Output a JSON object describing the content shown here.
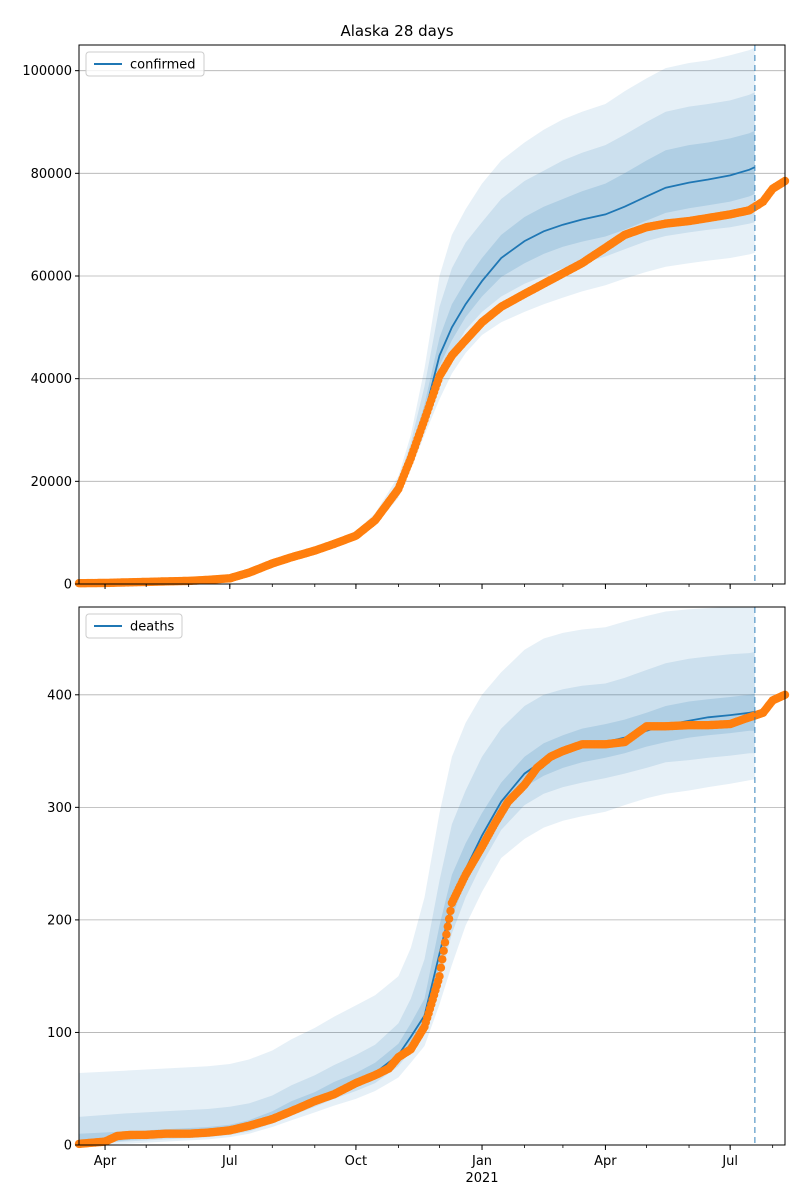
{
  "title": "Alaska 28 days",
  "colors": {
    "line": "#1f77b4",
    "band": "#1f77b4",
    "observed": "#ff7f0e",
    "grid": "#b0b0b0",
    "forecast_marker": "#1f77b4"
  },
  "x_axis": {
    "start": "2020-03-13",
    "end": "2021-08-10",
    "tick_labels": [
      {
        "date": "2020-04-01",
        "label": "Apr"
      },
      {
        "date": "2020-07-01",
        "label": "Jul"
      },
      {
        "date": "2020-10-01",
        "label": "Oct"
      },
      {
        "date": "2021-01-01",
        "label": "Jan"
      },
      {
        "date": "2021-04-01",
        "label": "Apr"
      },
      {
        "date": "2021-07-01",
        "label": "Jul"
      }
    ],
    "year_label": "2021",
    "year_label_date": "2021-01-01",
    "forecast_start": "2021-07-19"
  },
  "chart_data": [
    {
      "type": "line",
      "legend": "confirmed",
      "legend_placement": "upper-left",
      "grid": "horizontal",
      "ylim": [
        0,
        105000
      ],
      "yticks": [
        0,
        20000,
        40000,
        60000,
        80000,
        100000
      ],
      "ytick_labels": [
        "0",
        "20000",
        "40000",
        "60000",
        "80000",
        "100000"
      ],
      "dates": [
        "2020-03-13",
        "2020-04-15",
        "2020-05-15",
        "2020-06-15",
        "2020-07-01",
        "2020-07-15",
        "2020-08-01",
        "2020-08-15",
        "2020-09-01",
        "2020-09-15",
        "2020-10-01",
        "2020-10-15",
        "2020-11-01",
        "2020-11-10",
        "2020-11-20",
        "2020-12-01",
        "2020-12-10",
        "2020-12-20",
        "2021-01-01",
        "2021-01-15",
        "2021-02-01",
        "2021-02-15",
        "2021-03-01",
        "2021-03-15",
        "2021-04-01",
        "2021-04-15",
        "2021-05-01",
        "2021-05-15",
        "2021-06-01",
        "2021-06-15",
        "2021-07-01",
        "2021-07-15",
        "2021-07-19"
      ],
      "median": [
        200,
        300,
        500,
        700,
        1100,
        2200,
        4000,
        5300,
        6500,
        7800,
        9400,
        12500,
        18500,
        24800,
        33000,
        44500,
        50000,
        54500,
        59000,
        63500,
        66800,
        68700,
        70000,
        71000,
        72000,
        73500,
        75500,
        77200,
        78200,
        78800,
        79600,
        80700,
        81200
      ],
      "bands": [
        {
          "lower": [
            150,
            250,
            400,
            600,
            1000,
            2000,
            3700,
            4800,
            6000,
            7200,
            8700,
            11400,
            16800,
            22300,
            29000,
            36000,
            41000,
            45000,
            48500,
            51000,
            53000,
            54500,
            55800,
            57000,
            58200,
            59500,
            60800,
            61800,
            62500,
            63000,
            63500,
            64200,
            64500
          ],
          "upper": [
            250,
            350,
            600,
            800,
            1200,
            2400,
            4300,
            5800,
            7100,
            8400,
            10200,
            13800,
            21000,
            29000,
            42000,
            60000,
            68000,
            73000,
            78000,
            82500,
            86000,
            88500,
            90500,
            92000,
            93500,
            96000,
            98500,
            100500,
            101500,
            102000,
            103000,
            104000,
            104500
          ]
        },
        {
          "lower": [
            170,
            270,
            430,
            640,
            1040,
            2070,
            3800,
            5000,
            6200,
            7400,
            9000,
            11800,
            17500,
            23300,
            31000,
            40000,
            45000,
            49500,
            53000,
            56000,
            58500,
            60000,
            61500,
            62500,
            63800,
            65200,
            66800,
            67800,
            68500,
            69000,
            69500,
            70200,
            70500
          ],
          "upper": [
            230,
            330,
            570,
            760,
            1160,
            2330,
            4200,
            5600,
            6850,
            8200,
            9900,
            13300,
            20000,
            27500,
            38500,
            54000,
            61500,
            66500,
            70500,
            75000,
            78500,
            80500,
            82500,
            84000,
            85500,
            87500,
            90000,
            92000,
            93000,
            93500,
            94200,
            95300,
            95800
          ]
        },
        {
          "lower": [
            185,
            285,
            460,
            670,
            1070,
            2130,
            3900,
            5150,
            6350,
            7600,
            9200,
            12100,
            18000,
            24000,
            32000,
            42500,
            47500,
            52000,
            56000,
            59800,
            62500,
            64300,
            65700,
            66700,
            67700,
            69000,
            70800,
            72300,
            73200,
            73800,
            74500,
            75500,
            76000
          ],
          "upper": [
            215,
            315,
            540,
            730,
            1130,
            2270,
            4100,
            5450,
            6650,
            8000,
            9600,
            12900,
            19200,
            26000,
            35000,
            48000,
            54500,
            59000,
            63500,
            68000,
            71500,
            73500,
            75000,
            76500,
            78000,
            80000,
            82500,
            84500,
            85500,
            86000,
            86800,
            87800,
            88300
          ]
        }
      ],
      "observed": {
        "dates": [
          "2020-03-13",
          "2020-04-01",
          "2020-04-15",
          "2020-05-01",
          "2020-05-15",
          "2020-06-01",
          "2020-06-15",
          "2020-07-01",
          "2020-07-15",
          "2020-08-01",
          "2020-08-15",
          "2020-09-01",
          "2020-09-15",
          "2020-10-01",
          "2020-10-15",
          "2020-11-01",
          "2020-11-10",
          "2020-11-20",
          "2020-12-01",
          "2020-12-10",
          "2020-12-20",
          "2021-01-01",
          "2021-01-15",
          "2021-02-01",
          "2021-02-15",
          "2021-03-01",
          "2021-03-15",
          "2021-04-01",
          "2021-04-15",
          "2021-05-01",
          "2021-05-15",
          "2021-06-01",
          "2021-06-15",
          "2021-07-01",
          "2021-07-15",
          "2021-07-25",
          "2021-08-01",
          "2021-08-10"
        ],
        "values": [
          150,
          200,
          300,
          400,
          500,
          600,
          800,
          1100,
          2200,
          4000,
          5200,
          6500,
          7800,
          9400,
          12400,
          18500,
          24500,
          32000,
          40500,
          44500,
          47500,
          51000,
          54000,
          56500,
          58500,
          60500,
          62500,
          65500,
          68000,
          69500,
          70200,
          70700,
          71300,
          72000,
          72800,
          74500,
          77000,
          78500
        ]
      }
    },
    {
      "type": "line",
      "legend": "deaths",
      "legend_placement": "upper-left",
      "grid": "horizontal",
      "ylim": [
        0,
        478
      ],
      "yticks": [
        0,
        100,
        200,
        300,
        400
      ],
      "ytick_labels": [
        "0",
        "100",
        "200",
        "300",
        "400"
      ],
      "dates": [
        "2020-03-13",
        "2020-04-15",
        "2020-05-15",
        "2020-06-15",
        "2020-07-01",
        "2020-07-15",
        "2020-08-01",
        "2020-08-15",
        "2020-09-01",
        "2020-09-15",
        "2020-10-01",
        "2020-10-15",
        "2020-11-01",
        "2020-11-10",
        "2020-11-20",
        "2020-12-01",
        "2020-12-10",
        "2020-12-20",
        "2021-01-01",
        "2021-01-15",
        "2021-02-01",
        "2021-02-15",
        "2021-03-01",
        "2021-03-15",
        "2021-04-01",
        "2021-04-15",
        "2021-05-01",
        "2021-05-15",
        "2021-06-01",
        "2021-06-15",
        "2021-07-01",
        "2021-07-15",
        "2021-07-19"
      ],
      "median": [
        1,
        6,
        9,
        10,
        13,
        17,
        24,
        32,
        40,
        48,
        56,
        64,
        80,
        96,
        115,
        170,
        215,
        245,
        275,
        305,
        330,
        342,
        350,
        355,
        358,
        362,
        368,
        373,
        377,
        380,
        382,
        384,
        385
      ],
      "bands": [
        {
          "lower": [
            0,
            1,
            3,
            5,
            7,
            10,
            16,
            22,
            29,
            35,
            41,
            48,
            60,
            73,
            88,
            125,
            160,
            195,
            225,
            255,
            272,
            282,
            288,
            292,
            296,
            302,
            308,
            312,
            315,
            318,
            321,
            324,
            325
          ],
          "upper": [
            64,
            66,
            68,
            70,
            72,
            76,
            84,
            94,
            104,
            114,
            124,
            133,
            150,
            175,
            220,
            295,
            345,
            375,
            400,
            420,
            440,
            450,
            455,
            458,
            460,
            465,
            470,
            474,
            476,
            477,
            478,
            478,
            478
          ]
        },
        {
          "lower": [
            0,
            3,
            5,
            7,
            9,
            12,
            19,
            26,
            34,
            41,
            48,
            55,
            70,
            84,
            100,
            145,
            188,
            220,
            250,
            280,
            302,
            312,
            318,
            322,
            326,
            330,
            335,
            340,
            342,
            344,
            346,
            348,
            348
          ],
          "upper": [
            25,
            28,
            30,
            32,
            34,
            37,
            44,
            53,
            62,
            71,
            80,
            89,
            108,
            130,
            165,
            235,
            285,
            315,
            345,
            370,
            390,
            400,
            405,
            408,
            410,
            415,
            422,
            428,
            432,
            434,
            436,
            437,
            438
          ]
        },
        {
          "lower": [
            0,
            4,
            7,
            8,
            11,
            15,
            21,
            29,
            37,
            45,
            52,
            60,
            75,
            90,
            108,
            158,
            202,
            235,
            263,
            293,
            318,
            328,
            335,
            340,
            344,
            348,
            354,
            358,
            362,
            364,
            366,
            368,
            368
          ],
          "upper": [
            10,
            12,
            14,
            16,
            18,
            22,
            30,
            39,
            47,
            56,
            64,
            73,
            90,
            108,
            130,
            195,
            240,
            268,
            295,
            322,
            345,
            357,
            364,
            370,
            374,
            378,
            384,
            390,
            394,
            396,
            398,
            400,
            401
          ]
        }
      ],
      "observed": {
        "dates": [
          "2020-03-13",
          "2020-04-01",
          "2020-04-10",
          "2020-04-20",
          "2020-05-01",
          "2020-05-15",
          "2020-06-01",
          "2020-06-15",
          "2020-07-01",
          "2020-07-15",
          "2020-08-01",
          "2020-08-15",
          "2020-09-01",
          "2020-09-15",
          "2020-10-01",
          "2020-10-15",
          "2020-10-25",
          "2020-11-01",
          "2020-11-10",
          "2020-11-15",
          "2020-11-20",
          "2020-11-25",
          "2020-12-01",
          "2020-12-05",
          "2020-12-10",
          "2020-12-20",
          "2021-01-01",
          "2021-01-10",
          "2021-01-20",
          "2021-02-01",
          "2021-02-10",
          "2021-02-20",
          "2021-03-01",
          "2021-03-15",
          "2021-04-01",
          "2021-04-15",
          "2021-05-01",
          "2021-05-15",
          "2021-06-01",
          "2021-06-15",
          "2021-07-01",
          "2021-07-15",
          "2021-07-25",
          "2021-08-01",
          "2021-08-10"
        ],
        "values": [
          1,
          3,
          8,
          9,
          9,
          10,
          10,
          11,
          13,
          17,
          23,
          30,
          39,
          45,
          55,
          62,
          68,
          78,
          85,
          95,
          105,
          125,
          150,
          180,
          215,
          240,
          265,
          285,
          305,
          320,
          335,
          345,
          350,
          356,
          356,
          358,
          372,
          372,
          373,
          373,
          374,
          380,
          384,
          395,
          400
        ]
      }
    }
  ]
}
